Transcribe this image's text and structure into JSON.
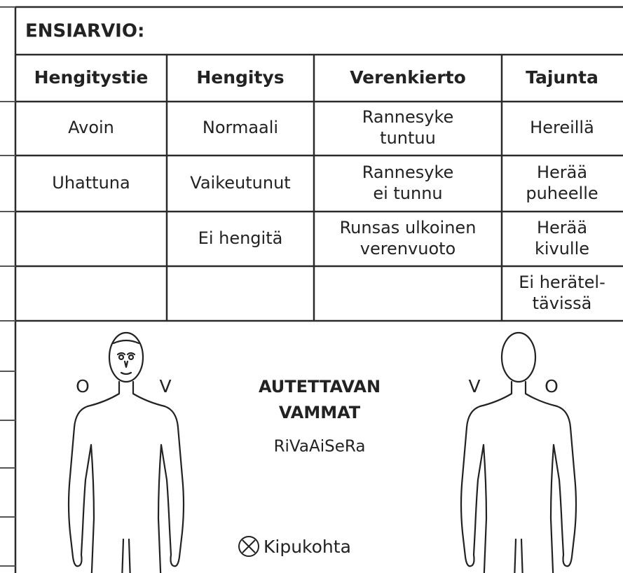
{
  "header": {
    "title": "ENSIARVIO:"
  },
  "table": {
    "columns": [
      {
        "header": "Hengitystie",
        "cells": [
          [
            "Avoin"
          ],
          [
            "Uhattuna"
          ]
        ]
      },
      {
        "header": "Hengitys",
        "cells": [
          [
            "Normaali"
          ],
          [
            "Vaikeutunut"
          ],
          [
            "Ei hengitä"
          ]
        ]
      },
      {
        "header": "Verenkierto",
        "cells": [
          [
            "Rannesyke",
            "tuntuu"
          ],
          [
            "Rannesyke",
            "ei tunnu"
          ],
          [
            "Runsas ulkoinen",
            "verenvuoto"
          ]
        ]
      },
      {
        "header": "Tajunta",
        "cells": [
          [
            "Hereillä"
          ],
          [
            "Herää",
            "puheelle"
          ],
          [
            "Herää",
            "kivulle"
          ],
          [
            "Ei herätel-",
            "tävissä"
          ]
        ]
      }
    ]
  },
  "injuries": {
    "front_figure": {
      "left_label": "O",
      "right_label": "V"
    },
    "title": [
      "AUTETTAVAN",
      "VAMMAT"
    ],
    "subtitle": "RiVaAiSeRa",
    "legend": [
      {
        "label": "Kipukohta"
      }
    ],
    "back_figure": {
      "left_label": "V",
      "right_label": "O"
    }
  }
}
